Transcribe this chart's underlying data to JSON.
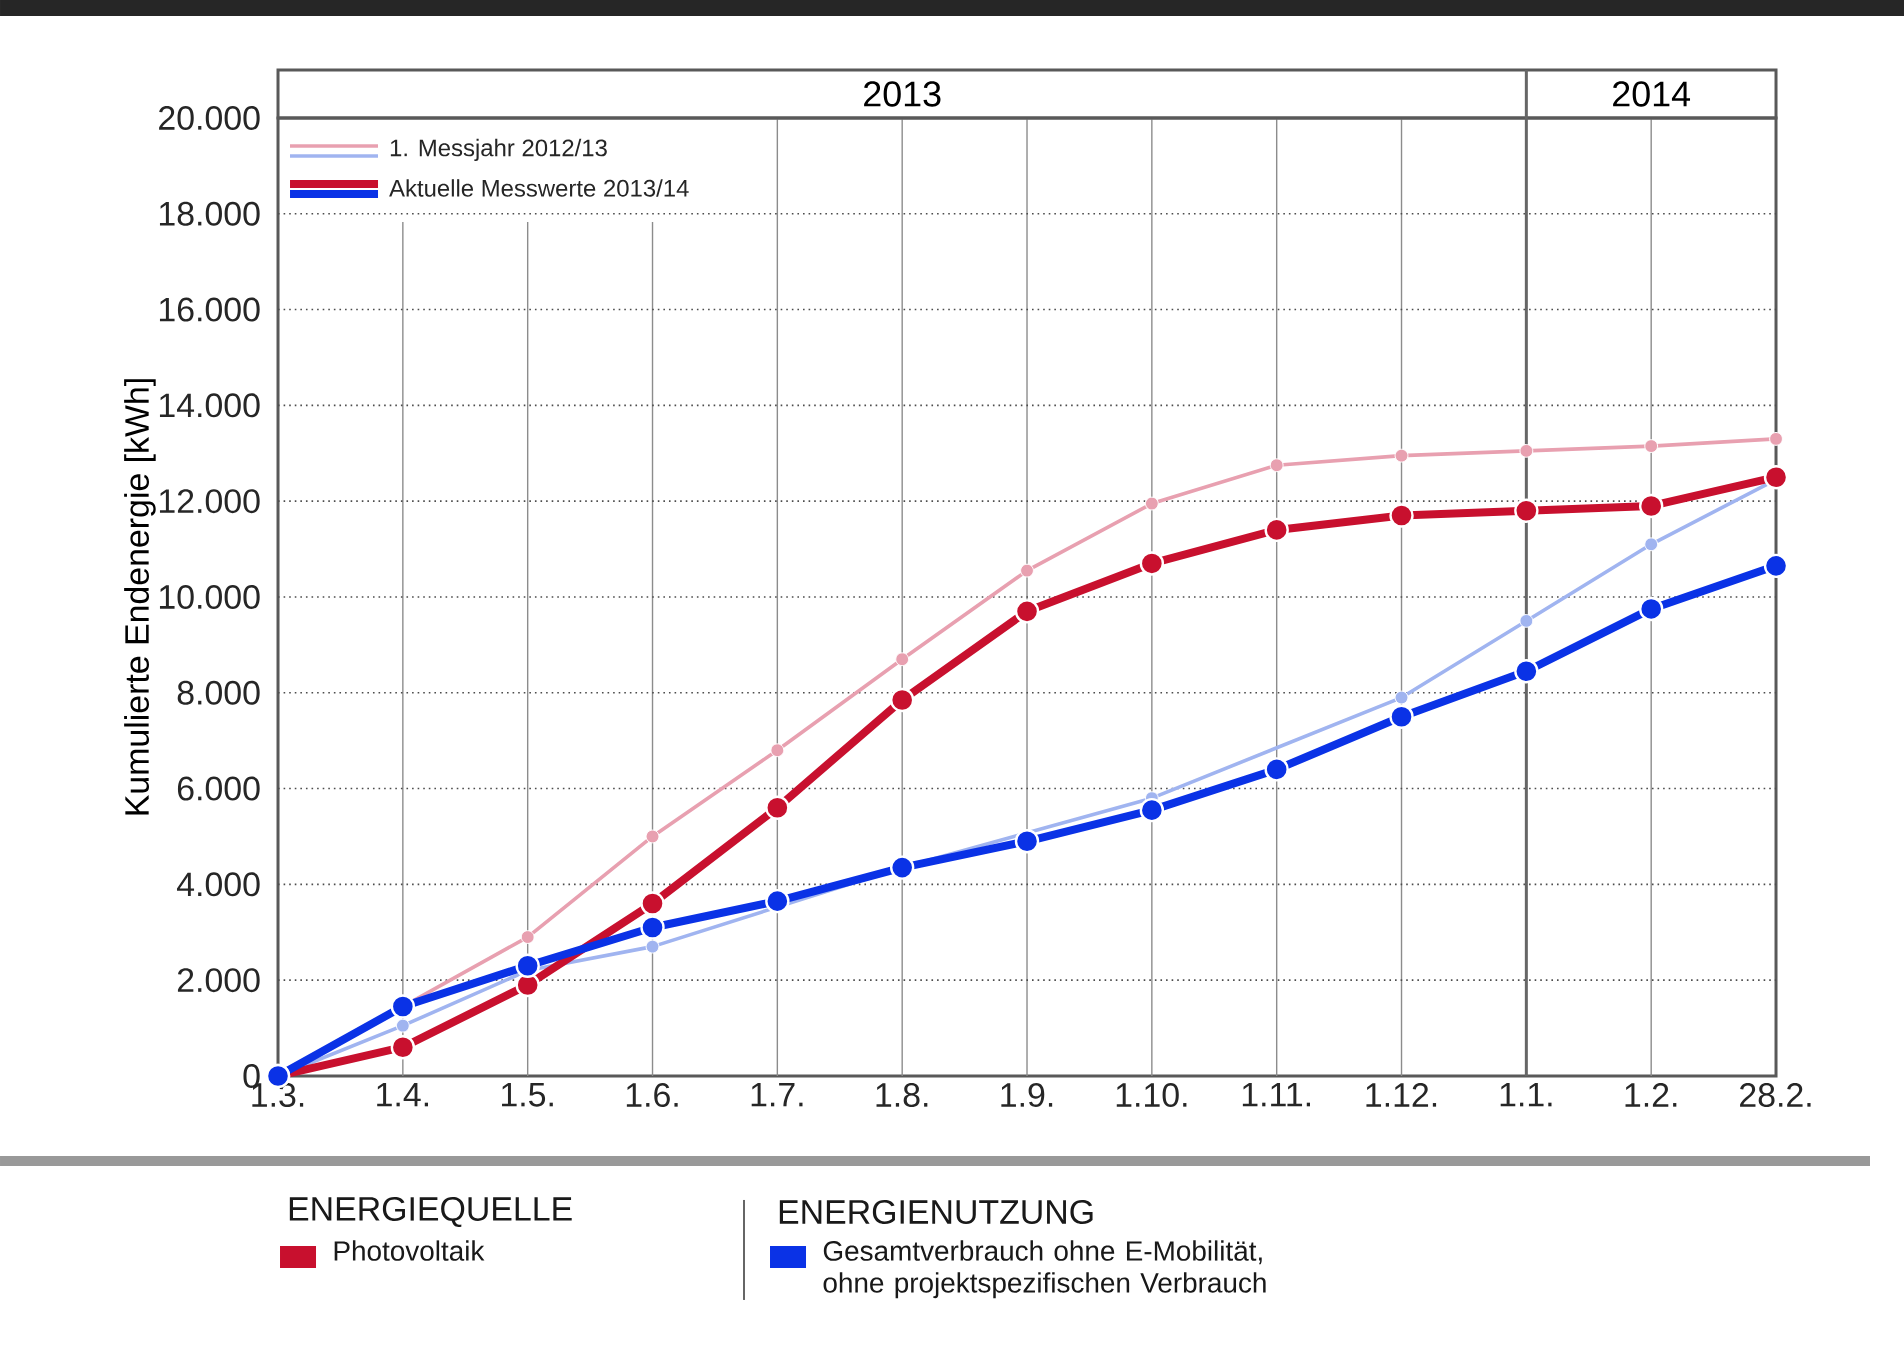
{
  "chart_data": {
    "type": "line",
    "ylabel": "Kumulierte Endenergie [kWh]",
    "categories": [
      "1.3.",
      "1.4.",
      "1.5.",
      "1.6.",
      "1.7.",
      "1.8.",
      "1.9.",
      "1.10.",
      "1.11.",
      "1.12.",
      "1.1.",
      "1.2.",
      "28.2."
    ],
    "ylim": [
      0,
      20000
    ],
    "yticks": [
      0,
      {
        "value": 2000,
        "label": "2.000"
      },
      {
        "value": 4000,
        "label": "4.000"
      },
      {
        "value": 6000,
        "label": "6.000"
      },
      {
        "value": 8000,
        "label": "8.000"
      },
      {
        "value": 10000,
        "label": "10.000"
      },
      {
        "value": 12000,
        "label": "12.000"
      },
      {
        "value": 14000,
        "label": "14.000"
      },
      {
        "value": 16000,
        "label": "16.000"
      },
      {
        "value": 18000,
        "label": "18.000"
      },
      {
        "value": 20000,
        "label": "20.000"
      }
    ],
    "series": [
      {
        "color": "#e8a0b0",
        "values": [
          0,
          null,
          2900,
          5000,
          6800,
          8700,
          10550,
          11950,
          12750,
          12950,
          13050,
          13150,
          13300
        ]
      },
      {
        "color": "#a0b4f0",
        "values": [
          0,
          1050,
          2200,
          2700,
          null,
          4350,
          null,
          5800,
          null,
          7900,
          9500,
          11100,
          12450
        ]
      },
      {
        "name": "Photovoltaik",
        "color": "#c8102e",
        "values": [
          0,
          600,
          1900,
          3600,
          5600,
          7850,
          9700,
          10700,
          11400,
          11700,
          11800,
          11900,
          12500
        ]
      },
      {
        "name": "Gesamtverbrauch ohne E-Mobilität, ohne projektspezifischen Verbrauch",
        "color": "#0a32e6",
        "values": [
          0,
          1450,
          2300,
          3100,
          3650,
          4350,
          4900,
          5550,
          6400,
          7500,
          8450,
          9750,
          10650
        ]
      }
    ],
    "ref_lines": [
      {
        "axis": "x",
        "value": "1.1.",
        "color": "#666666"
      }
    ],
    "annotations": [
      "2013",
      "2014",
      "1. Messjahr 2012/13",
      "Aktuelle Messwerte 2013/14",
      "ENERGIEQUELLE",
      "ENERGIENUTZUNG"
    ],
    "grid": true,
    "legend": "bottom",
    "marker": "circle",
    "line_style": "solid"
  }
}
